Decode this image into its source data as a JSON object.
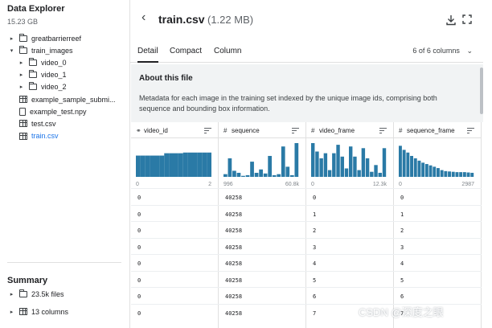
{
  "sidebar": {
    "title": "Data Explorer",
    "size": "15.23 GB",
    "tree": [
      {
        "label": "greatbarrierreef",
        "icon": "folder-icon",
        "caret": "▸",
        "depth": 0,
        "active": false
      },
      {
        "label": "train_images",
        "icon": "folder-icon",
        "caret": "▾",
        "depth": 0,
        "active": false
      },
      {
        "label": "video_0",
        "icon": "folder-icon",
        "caret": "▸",
        "depth": 1,
        "active": false
      },
      {
        "label": "video_1",
        "icon": "folder-icon",
        "caret": "▸",
        "depth": 1,
        "active": false
      },
      {
        "label": "video_2",
        "icon": "folder-icon",
        "caret": "▸",
        "depth": 1,
        "active": false
      },
      {
        "label": "example_sample_submi...",
        "icon": "table-icon",
        "caret": "",
        "depth": 0,
        "active": false
      },
      {
        "label": "example_test.npy",
        "icon": "file-icon",
        "caret": "",
        "depth": 0,
        "active": false
      },
      {
        "label": "test.csv",
        "icon": "table-icon",
        "caret": "",
        "depth": 0,
        "active": false
      },
      {
        "label": "train.csv",
        "icon": "table-icon",
        "caret": "",
        "depth": 0,
        "active": true
      }
    ],
    "summary": {
      "title": "Summary",
      "items": [
        {
          "label": "23.5k files",
          "icon": "folder-icon",
          "caret": "▸"
        },
        {
          "label": "13 columns",
          "icon": "table-icon",
          "caret": "▸"
        }
      ]
    }
  },
  "header": {
    "back_icon": "chevron-left-icon",
    "back_glyph": "‹",
    "file_name": "train.csv",
    "file_size": "(1.22 MB)",
    "download_icon": "download-icon",
    "fullscreen_icon": "fullscreen-icon"
  },
  "tabs": [
    {
      "label": "Detail",
      "active": true
    },
    {
      "label": "Compact",
      "active": false
    },
    {
      "label": "Column",
      "active": false
    }
  ],
  "columns_dropdown": "6 of 6 columns",
  "columns_dropdown_icon": "chevron-down-icon",
  "columns_dropdown_glyph": "⌄",
  "about": {
    "title": "About this file",
    "description": "Metadata for each image in the training set indexed by the unique image ids, comprising both sequence and bounding box information."
  },
  "columns": [
    {
      "type_glyph": "⚭",
      "type_icon": "id-icon",
      "name": "video_id",
      "min": "0",
      "max": "2",
      "hist": [
        0.63,
        0.63,
        0.63,
        0.63,
        0.63,
        0.63,
        0.7,
        0.7,
        0.7,
        0.7,
        0.72,
        0.72,
        0.72,
        0.72,
        0.72,
        0.72
      ]
    },
    {
      "type_glyph": "#",
      "type_icon": "numeric-icon",
      "name": "sequence",
      "min": "996",
      "max": "60.8k",
      "hist": [
        0.08,
        0.55,
        0.18,
        0.12,
        0.03,
        0.05,
        0.45,
        0.12,
        0.22,
        0.1,
        0.62,
        0.05,
        0.08,
        0.9,
        0.3,
        0.05,
        1.0
      ]
    },
    {
      "type_glyph": "#",
      "type_icon": "numeric-icon",
      "name": "video_frame",
      "min": "0",
      "max": "12.3k",
      "hist": [
        1.0,
        0.75,
        0.55,
        0.7,
        0.2,
        0.7,
        0.95,
        0.6,
        0.25,
        0.9,
        0.6,
        0.2,
        0.85,
        0.55,
        0.15,
        0.35,
        0.12,
        0.85
      ]
    },
    {
      "type_glyph": "#",
      "type_icon": "numeric-icon",
      "name": "sequence_frame",
      "min": "0",
      "max": "2987",
      "hist": [
        0.92,
        0.8,
        0.72,
        0.62,
        0.55,
        0.48,
        0.42,
        0.38,
        0.34,
        0.3,
        0.26,
        0.2,
        0.17,
        0.16,
        0.15,
        0.14,
        0.14,
        0.14,
        0.13,
        0.12
      ]
    }
  ],
  "rows": [
    [
      "0",
      "40258",
      "0",
      "0"
    ],
    [
      "0",
      "40258",
      "1",
      "1"
    ],
    [
      "0",
      "40258",
      "2",
      "2"
    ],
    [
      "0",
      "40258",
      "3",
      "3"
    ],
    [
      "0",
      "40258",
      "4",
      "4"
    ],
    [
      "0",
      "40258",
      "5",
      "5"
    ],
    [
      "0",
      "40258",
      "6",
      "6"
    ],
    [
      "0",
      "40258",
      "7",
      "7"
    ]
  ],
  "watermark": "CSDN @深度之眼"
}
